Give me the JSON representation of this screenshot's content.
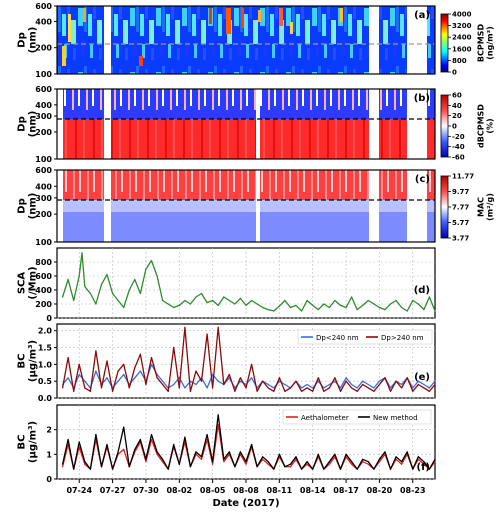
{
  "figure": {
    "xlabel": "Date (2017)",
    "xticks": [
      "07-24",
      "07-27",
      "07-30",
      "08-02",
      "08-05",
      "08-08",
      "08-11",
      "08-14",
      "08-17",
      "08-20",
      "08-23"
    ]
  },
  "chart_data": [
    {
      "type": "heatmap",
      "panel_label": "(a)",
      "ylabel": "Dp\n(nm)",
      "yscale": "log",
      "ylim": [
        100,
        600
      ],
      "yticks": [
        "100",
        "200",
        "400",
        "600"
      ],
      "reference_line_nm": 240,
      "colorbar": {
        "label": "BCPMSD\n(ng/m³)",
        "ticks": [
          "0",
          "800",
          "1600",
          "2400",
          "3200",
          "4000"
        ],
        "range": [
          0,
          4000
        ],
        "colormap": "jet"
      }
    },
    {
      "type": "heatmap",
      "panel_label": "(b)",
      "ylabel": "Dp\n(nm)",
      "yscale": "log",
      "ylim": [
        100,
        600
      ],
      "yticks": [
        "100",
        "200",
        "300",
        "400",
        "600"
      ],
      "reference_line_nm": 280,
      "colorbar": {
        "label": "dBCPMSD\n(%)",
        "ticks": [
          "-60",
          "-40",
          "-20",
          "0",
          "20",
          "40",
          "60"
        ],
        "range": [
          -60,
          60
        ],
        "colormap": "bwr"
      }
    },
    {
      "type": "heatmap",
      "panel_label": "(c)",
      "ylabel": "Dp\n(nm)",
      "yscale": "log",
      "ylim": [
        100,
        600
      ],
      "yticks": [
        "100",
        "200",
        "300",
        "400",
        "600"
      ],
      "reference_line_nm": 280,
      "colorbar": {
        "label": "MAC\n(m²/g)",
        "ticks": [
          "3.77",
          "5.77",
          "7.77",
          "9.77",
          "11.77"
        ],
        "range": [
          3.77,
          11.77
        ],
        "colormap": "bwr"
      }
    },
    {
      "type": "line",
      "panel_label": "(d)",
      "ylabel": "SCA\n(/Mm)",
      "ylim": [
        0,
        1000
      ],
      "yticks": [
        "0",
        "200",
        "400",
        "600",
        "800"
      ],
      "series": [
        {
          "color": "#2e8b2e",
          "x": [
            "07-22 12:00",
            "07-23 00:00",
            "07-23 12:00",
            "07-24 00:00",
            "07-24 06:00",
            "07-24 12:00",
            "07-25 00:00",
            "07-25 12:00",
            "07-26 00:00",
            "07-26 12:00",
            "07-27 00:00",
            "07-27 12:00",
            "07-28 00:00",
            "07-28 12:00",
            "07-29 00:00",
            "07-29 12:00",
            "07-30 00:00",
            "07-30 12:00",
            "07-31 00:00",
            "07-31 12:00",
            "08-01 00:00",
            "08-01 12:00",
            "08-02 00:00",
            "08-02 12:00",
            "08-03 00:00",
            "08-03 12:00",
            "08-04 00:00",
            "08-04 12:00",
            "08-05 00:00",
            "08-05 12:00",
            "08-06 00:00",
            "08-06 12:00",
            "08-07 00:00",
            "08-07 12:00",
            "08-08 00:00",
            "08-08 12:00",
            "08-09 00:00",
            "08-09 12:00",
            "08-10 00:00",
            "08-10 12:00",
            "08-11 00:00",
            "08-11 12:00",
            "08-12 00:00",
            "08-12 12:00",
            "08-13 00:00",
            "08-13 12:00",
            "08-14 00:00",
            "08-14 12:00",
            "08-15 00:00",
            "08-15 12:00",
            "08-16 00:00",
            "08-16 12:00",
            "08-17 00:00",
            "08-17 12:00",
            "08-18 00:00",
            "08-18 12:00",
            "08-19 00:00",
            "08-19 12:00",
            "08-20 00:00",
            "08-20 12:00",
            "08-21 00:00",
            "08-21 12:00",
            "08-22 00:00",
            "08-22 12:00",
            "08-23 00:00",
            "08-23 12:00",
            "08-24 00:00",
            "08-24 12:00",
            "08-25 00:00"
          ],
          "y": [
            300,
            550,
            250,
            600,
            930,
            450,
            350,
            200,
            480,
            620,
            350,
            250,
            150,
            400,
            550,
            350,
            700,
            820,
            600,
            250,
            200,
            150,
            180,
            250,
            200,
            300,
            350,
            220,
            250,
            180,
            300,
            250,
            200,
            280,
            180,
            250,
            200,
            150,
            120,
            100,
            170,
            250,
            150,
            180,
            100,
            250,
            180,
            120,
            200,
            150,
            250,
            180,
            150,
            300,
            120,
            180,
            250,
            200,
            150,
            120,
            200,
            250,
            150,
            100,
            250,
            200,
            120,
            300,
            100
          ]
        }
      ]
    },
    {
      "type": "line",
      "panel_label": "(e)",
      "ylabel": "BC\n(μg/m³)",
      "ylim": [
        0,
        2.2
      ],
      "yticks": [
        "0.0",
        "0.5",
        "1.0",
        "1.5",
        "2.0"
      ],
      "legend_position": "top-right",
      "series": [
        {
          "name": "Dp<240 nm",
          "color": "#3a6fd8",
          "x": [
            "07-22 12:00",
            "07-23 00:00",
            "07-23 12:00",
            "07-24 00:00",
            "07-24 12:00",
            "07-25 00:00",
            "07-25 12:00",
            "07-26 00:00",
            "07-26 12:00",
            "07-27 00:00",
            "07-27 12:00",
            "07-28 00:00",
            "07-28 12:00",
            "07-29 00:00",
            "07-29 12:00",
            "07-30 00:00",
            "07-30 12:00",
            "07-31 00:00",
            "07-31 12:00",
            "08-01 00:00",
            "08-01 12:00",
            "08-02 00:00",
            "08-02 12:00",
            "08-03 00:00",
            "08-03 12:00",
            "08-04 00:00",
            "08-04 12:00",
            "08-05 00:00",
            "08-05 12:00",
            "08-06 00:00",
            "08-06 12:00",
            "08-07 00:00",
            "08-07 12:00",
            "08-08 00:00",
            "08-08 12:00",
            "08-09 00:00",
            "08-09 12:00",
            "08-10 00:00",
            "08-10 12:00",
            "08-11 00:00",
            "08-11 12:00",
            "08-12 00:00",
            "08-12 12:00",
            "08-13 00:00",
            "08-13 12:00",
            "08-14 00:00",
            "08-14 12:00",
            "08-15 00:00",
            "08-15 12:00",
            "08-16 00:00",
            "08-16 12:00",
            "08-17 00:00",
            "08-17 12:00",
            "08-18 00:00",
            "08-18 12:00",
            "08-19 00:00",
            "08-19 12:00",
            "08-20 00:00",
            "08-20 12:00",
            "08-21 00:00",
            "08-21 12:00",
            "08-22 00:00",
            "08-22 12:00",
            "08-23 00:00",
            "08-23 12:00",
            "08-24 00:00",
            "08-24 12:00",
            "08-25 00:00"
          ],
          "y": [
            0.4,
            0.6,
            0.3,
            0.7,
            0.5,
            0.3,
            0.8,
            0.4,
            0.6,
            0.3,
            0.5,
            0.7,
            0.4,
            0.6,
            0.8,
            0.5,
            1.0,
            0.7,
            0.5,
            0.3,
            0.4,
            0.6,
            0.3,
            0.5,
            0.4,
            0.6,
            0.3,
            0.7,
            0.5,
            0.4,
            0.6,
            0.3,
            0.5,
            0.4,
            0.6,
            0.3,
            0.5,
            0.4,
            0.3,
            0.5,
            0.4,
            0.3,
            0.5,
            0.3,
            0.4,
            0.3,
            0.5,
            0.3,
            0.4,
            0.5,
            0.3,
            0.6,
            0.4,
            0.3,
            0.5,
            0.4,
            0.3,
            0.5,
            0.6,
            0.3,
            0.5,
            0.4,
            0.6,
            0.3,
            0.5,
            0.4,
            0.3,
            0.5
          ]
        },
        {
          "name": "Dp>240 nm",
          "color": "#8b0a0a",
          "x": [
            "07-22 12:00",
            "07-23 00:00",
            "07-23 12:00",
            "07-24 00:00",
            "07-24 12:00",
            "07-25 00:00",
            "07-25 12:00",
            "07-26 00:00",
            "07-26 12:00",
            "07-27 00:00",
            "07-27 12:00",
            "07-28 00:00",
            "07-28 12:00",
            "07-29 00:00",
            "07-29 12:00",
            "07-30 00:00",
            "07-30 12:00",
            "07-31 00:00",
            "07-31 12:00",
            "08-01 00:00",
            "08-01 12:00",
            "08-02 00:00",
            "08-02 12:00",
            "08-03 00:00",
            "08-03 12:00",
            "08-04 00:00",
            "08-04 12:00",
            "08-05 00:00",
            "08-05 12:00",
            "08-06 00:00",
            "08-06 12:00",
            "08-07 00:00",
            "08-07 12:00",
            "08-08 00:00",
            "08-08 12:00",
            "08-09 00:00",
            "08-09 12:00",
            "08-10 00:00",
            "08-10 12:00",
            "08-11 00:00",
            "08-11 12:00",
            "08-12 00:00",
            "08-12 12:00",
            "08-13 00:00",
            "08-13 12:00",
            "08-14 00:00",
            "08-14 12:00",
            "08-15 00:00",
            "08-15 12:00",
            "08-16 00:00",
            "08-16 12:00",
            "08-17 00:00",
            "08-17 12:00",
            "08-18 00:00",
            "08-18 12:00",
            "08-19 00:00",
            "08-19 12:00",
            "08-20 00:00",
            "08-20 12:00",
            "08-21 00:00",
            "08-21 12:00",
            "08-22 00:00",
            "08-22 12:00",
            "08-23 00:00",
            "08-23 12:00",
            "08-24 00:00",
            "08-24 12:00",
            "08-25 00:00"
          ],
          "y": [
            0.3,
            1.2,
            0.2,
            1.0,
            0.3,
            0.2,
            1.4,
            0.3,
            1.1,
            0.2,
            0.8,
            1.0,
            0.3,
            0.9,
            1.3,
            0.4,
            1.2,
            0.6,
            0.4,
            0.2,
            1.5,
            0.3,
            2.1,
            0.2,
            0.8,
            0.5,
            1.9,
            0.3,
            2.1,
            0.4,
            0.7,
            0.2,
            0.6,
            0.3,
            1.0,
            0.2,
            0.5,
            0.3,
            0.2,
            0.6,
            0.2,
            0.3,
            0.5,
            0.2,
            0.3,
            0.2,
            0.6,
            0.2,
            0.3,
            0.6,
            0.2,
            0.5,
            0.3,
            0.2,
            0.4,
            0.3,
            0.2,
            0.4,
            0.6,
            0.2,
            0.5,
            0.3,
            0.6,
            0.2,
            0.4,
            0.3,
            0.2,
            0.4
          ]
        }
      ]
    },
    {
      "type": "line",
      "panel_label": "(f)",
      "ylabel": "BC\n(μg/m³)",
      "ylim": [
        0,
        3.0
      ],
      "yticks": [
        "0",
        "1",
        "2"
      ],
      "legend_position": "top-right",
      "series": [
        {
          "name": "Aethalometer",
          "color": "#e02020",
          "x": [
            "07-22 12:00",
            "07-23 00:00",
            "07-23 12:00",
            "07-24 00:00",
            "07-24 12:00",
            "07-25 00:00",
            "07-25 12:00",
            "07-26 00:00",
            "07-26 12:00",
            "07-27 00:00",
            "07-27 12:00",
            "07-28 00:00",
            "07-28 12:00",
            "07-29 00:00",
            "07-29 12:00",
            "07-30 00:00",
            "07-30 12:00",
            "07-31 00:00",
            "07-31 12:00",
            "08-01 00:00",
            "08-01 12:00",
            "08-02 00:00",
            "08-02 12:00",
            "08-03 00:00",
            "08-03 12:00",
            "08-04 00:00",
            "08-04 12:00",
            "08-05 00:00",
            "08-05 12:00",
            "08-06 00:00",
            "08-06 12:00",
            "08-07 00:00",
            "08-07 12:00",
            "08-08 00:00",
            "08-08 12:00",
            "08-09 00:00",
            "08-09 12:00",
            "08-10 00:00",
            "08-10 12:00",
            "08-11 00:00",
            "08-11 12:00",
            "08-12 00:00",
            "08-12 12:00",
            "08-13 00:00",
            "08-13 12:00",
            "08-14 00:00",
            "08-14 12:00",
            "08-15 00:00",
            "08-15 12:00",
            "08-16 00:00",
            "08-16 12:00",
            "08-17 00:00",
            "08-17 12:00",
            "08-18 00:00",
            "08-18 12:00",
            "08-19 00:00",
            "08-19 12:00",
            "08-20 00:00",
            "08-20 12:00",
            "08-21 00:00",
            "08-21 12:00",
            "08-22 00:00",
            "08-22 12:00",
            "08-23 00:00",
            "08-23 12:00",
            "08-24 00:00",
            "08-24 12:00",
            "08-25 00:00"
          ],
          "y": [
            0.5,
            1.4,
            0.4,
            1.3,
            0.6,
            0.4,
            1.6,
            0.5,
            1.3,
            0.4,
            1.0,
            1.2,
            0.5,
            1.1,
            1.5,
            0.7,
            1.6,
            1.0,
            0.7,
            0.4,
            1.3,
            0.6,
            1.5,
            0.5,
            1.0,
            0.8,
            1.6,
            0.6,
            2.2,
            0.7,
            1.0,
            0.5,
            1.0,
            0.6,
            1.3,
            0.5,
            0.8,
            0.6,
            0.4,
            0.9,
            0.5,
            0.5,
            0.8,
            0.4,
            0.6,
            0.4,
            0.9,
            0.4,
            0.6,
            0.9,
            0.4,
            0.9,
            0.6,
            0.4,
            0.7,
            0.6,
            0.4,
            0.7,
            1.0,
            0.4,
            0.8,
            0.6,
            1.0,
            0.4,
            0.8,
            0.6,
            0.4,
            0.7
          ]
        },
        {
          "name": "New method",
          "color": "#000000",
          "x": [
            "07-22 12:00",
            "07-23 00:00",
            "07-23 12:00",
            "07-24 00:00",
            "07-24 12:00",
            "07-25 00:00",
            "07-25 12:00",
            "07-26 00:00",
            "07-26 12:00",
            "07-27 00:00",
            "07-27 12:00",
            "07-28 00:00",
            "07-28 12:00",
            "07-29 00:00",
            "07-29 12:00",
            "07-30 00:00",
            "07-30 12:00",
            "07-31 00:00",
            "07-31 12:00",
            "08-01 00:00",
            "08-01 12:00",
            "08-02 00:00",
            "08-02 12:00",
            "08-03 00:00",
            "08-03 12:00",
            "08-04 00:00",
            "08-04 12:00",
            "08-05 00:00",
            "08-05 12:00",
            "08-06 00:00",
            "08-06 12:00",
            "08-07 00:00",
            "08-07 12:00",
            "08-08 00:00",
            "08-08 12:00",
            "08-09 00:00",
            "08-09 12:00",
            "08-10 00:00",
            "08-10 12:00",
            "08-11 00:00",
            "08-11 12:00",
            "08-12 00:00",
            "08-12 12:00",
            "08-13 00:00",
            "08-13 12:00",
            "08-14 00:00",
            "08-14 12:00",
            "08-15 00:00",
            "08-15 12:00",
            "08-16 00:00",
            "08-16 12:00",
            "08-17 00:00",
            "08-17 12:00",
            "08-18 00:00",
            "08-18 12:00",
            "08-19 00:00",
            "08-19 12:00",
            "08-20 00:00",
            "08-20 12:00",
            "08-21 00:00",
            "08-21 12:00",
            "08-22 00:00",
            "08-22 12:00",
            "08-23 00:00",
            "08-23 12:00",
            "08-24 00:00",
            "08-24 12:00",
            "08-25 00:00"
          ],
          "y": [
            0.6,
            1.6,
            0.4,
            1.5,
            0.7,
            0.4,
            1.8,
            0.5,
            1.4,
            0.4,
            1.1,
            2.1,
            0.5,
            1.2,
            1.6,
            0.8,
            1.8,
            1.1,
            0.8,
            0.4,
            1.4,
            0.6,
            1.7,
            0.5,
            1.1,
            0.9,
            1.8,
            0.7,
            2.6,
            0.8,
            1.1,
            0.5,
            1.1,
            0.7,
            1.4,
            0.5,
            0.9,
            0.7,
            0.4,
            1.0,
            0.5,
            0.6,
            0.9,
            0.4,
            0.7,
            0.4,
            1.0,
            0.4,
            0.7,
            1.0,
            0.4,
            1.0,
            0.7,
            0.4,
            0.8,
            0.7,
            0.4,
            0.8,
            1.1,
            0.4,
            0.9,
            0.7,
            1.1,
            0.4,
            0.9,
            0.7,
            0.4,
            0.8
          ]
        }
      ]
    }
  ]
}
